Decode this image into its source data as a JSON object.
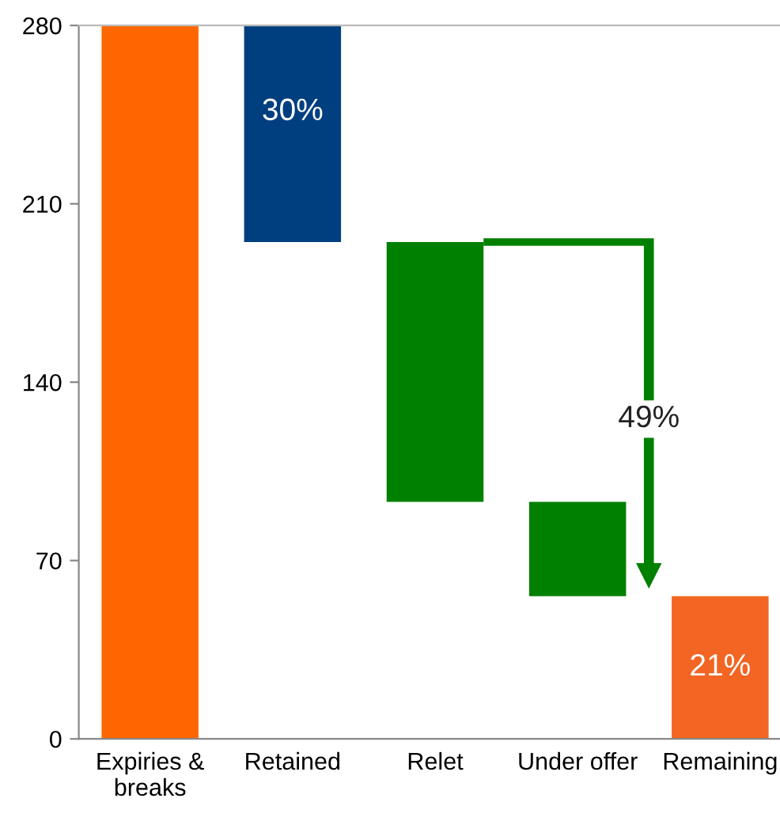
{
  "chart_data": {
    "type": "bar",
    "categories": [
      "Expiries &\nbreaks",
      "Retained",
      "Relet",
      "Under offer",
      "Remaining"
    ],
    "values": [
      280,
      85,
      102,
      37,
      56
    ],
    "base": [
      0,
      195,
      93,
      56,
      0
    ],
    "colors": [
      "#ff6600",
      "#003f7f",
      "#008000",
      "#008000",
      "#f26522"
    ],
    "ylim": [
      0,
      280
    ],
    "yticks": [
      0,
      70,
      140,
      210,
      280
    ],
    "grid": false,
    "legend": false,
    "annotations": [
      "30%",
      "49%",
      "21%"
    ]
  }
}
